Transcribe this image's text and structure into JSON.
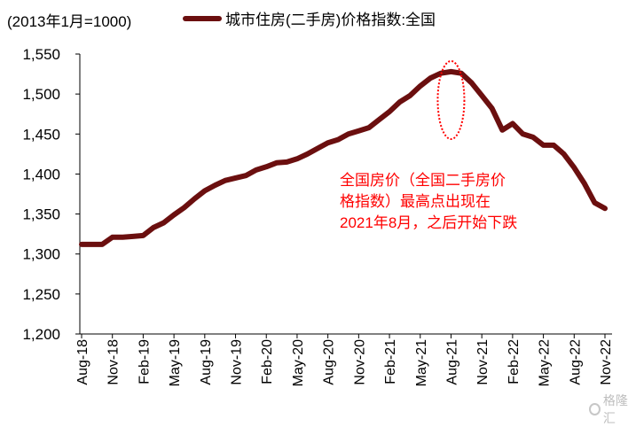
{
  "unit_label": "(2013年1月=1000)",
  "legend": {
    "label": "城市住房(二手房)价格指数:全国",
    "color": "#6b0f0f"
  },
  "annotation": {
    "lines": [
      "全国房价（全国二手房价",
      "格指数）最高点出现在",
      "2021年8月，之后开始下跌"
    ],
    "color": "#ff0000"
  },
  "watermark": {
    "icon": "logo-icon",
    "text": "格隆汇"
  },
  "chart_data": {
    "type": "line",
    "title": "",
    "xlabel": "",
    "ylabel": "",
    "ylim": [
      1200,
      1550
    ],
    "yticks": [
      1200,
      1250,
      1300,
      1350,
      1400,
      1450,
      1500,
      1550
    ],
    "ytick_labels": [
      "1,200",
      "1,250",
      "1,300",
      "1,350",
      "1,400",
      "1,450",
      "1,500",
      "1,550"
    ],
    "xtick_labels": [
      "Aug-18",
      "Nov-18",
      "Feb-19",
      "May-19",
      "Aug-19",
      "Nov-19",
      "Feb-20",
      "May-20",
      "Aug-20",
      "Nov-20",
      "Feb-21",
      "May-21",
      "Aug-21",
      "Nov-21",
      "Feb-22",
      "May-22",
      "Aug-22",
      "Nov-22"
    ],
    "x": [
      "2018-08",
      "2018-09",
      "2018-10",
      "2018-11",
      "2018-12",
      "2019-01",
      "2019-02",
      "2019-03",
      "2019-04",
      "2019-05",
      "2019-06",
      "2019-07",
      "2019-08",
      "2019-09",
      "2019-10",
      "2019-11",
      "2019-12",
      "2020-01",
      "2020-02",
      "2020-03",
      "2020-04",
      "2020-05",
      "2020-06",
      "2020-07",
      "2020-08",
      "2020-09",
      "2020-10",
      "2020-11",
      "2020-12",
      "2021-01",
      "2021-02",
      "2021-03",
      "2021-04",
      "2021-05",
      "2021-06",
      "2021-07",
      "2021-08",
      "2021-09",
      "2021-10",
      "2021-11",
      "2021-12",
      "2022-01",
      "2022-02",
      "2022-03",
      "2022-04",
      "2022-05",
      "2022-06",
      "2022-07",
      "2022-08",
      "2022-09",
      "2022-10",
      "2022-11"
    ],
    "series": [
      {
        "name": "城市住房(二手房)价格指数:全国",
        "color": "#6b0f0f",
        "values": [
          1312,
          1312,
          1312,
          1321,
          1321,
          1322,
          1323,
          1333,
          1339,
          1349,
          1358,
          1369,
          1379,
          1386,
          1392,
          1395,
          1398,
          1405,
          1409,
          1414,
          1415,
          1419,
          1425,
          1432,
          1439,
          1443,
          1450,
          1454,
          1458,
          1468,
          1478,
          1490,
          1498,
          1510,
          1520,
          1526,
          1528,
          1526,
          1514,
          1498,
          1482,
          1455,
          1463,
          1450,
          1446,
          1436,
          1436,
          1425,
          1408,
          1388,
          1364,
          1357
        ]
      }
    ],
    "highlight": {
      "x": "2021-08",
      "shape": "dotted-ellipse",
      "color": "#ff0000"
    },
    "grid": false,
    "legend_position": "top"
  }
}
